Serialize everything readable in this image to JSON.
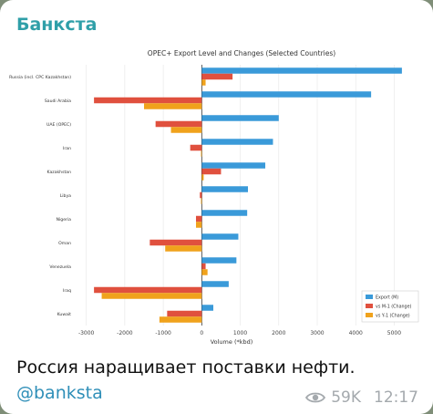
{
  "post": {
    "channel_name": "Банкста",
    "caption": "Россия наращивает поставки нефти.",
    "link": "@banksta",
    "views": "59K",
    "time": "12:17",
    "views_icon": "eye-icon"
  },
  "colors": {
    "export": "#3a9ad9",
    "mom": "#e0503e",
    "yoy": "#f0a21c",
    "channel": "#2f9fa8",
    "link": "#2f8fb8"
  },
  "chart_data": {
    "type": "bar",
    "orientation": "horizontal",
    "title": "OPEC+ Export Level and Changes (Selected Countries)",
    "xlabel": "Volume (*kbd)",
    "ylabel": "",
    "xlim": [
      -3300,
      5700
    ],
    "xticks": [
      -3000,
      -2000,
      -1000,
      0,
      1000,
      2000,
      3000,
      4000,
      5000
    ],
    "grid": true,
    "legend_position": "bottom-right",
    "categories": [
      "Russia (incl. CPC Kazakhstan)",
      "Saudi Arabia",
      "UAE (OPEC)",
      "Iran",
      "Kazakhstan",
      "Libya",
      "Nigeria",
      "Oman",
      "Venezuela",
      "Iraq",
      "Kuwait"
    ],
    "series": [
      {
        "name": "Export (M)",
        "values": [
          5200,
          4400,
          2000,
          1850,
          1650,
          1200,
          1180,
          950,
          900,
          700,
          300
        ]
      },
      {
        "name": "vs M-1 (Change)",
        "values": [
          800,
          -2800,
          -1200,
          -300,
          500,
          -50,
          -150,
          -1350,
          100,
          -2800,
          -900
        ]
      },
      {
        "name": "vs Y-1 (Change)",
        "values": [
          100,
          -1500,
          -800,
          -20,
          50,
          -20,
          -150,
          -950,
          150,
          -2600,
          -1100
        ]
      }
    ]
  }
}
